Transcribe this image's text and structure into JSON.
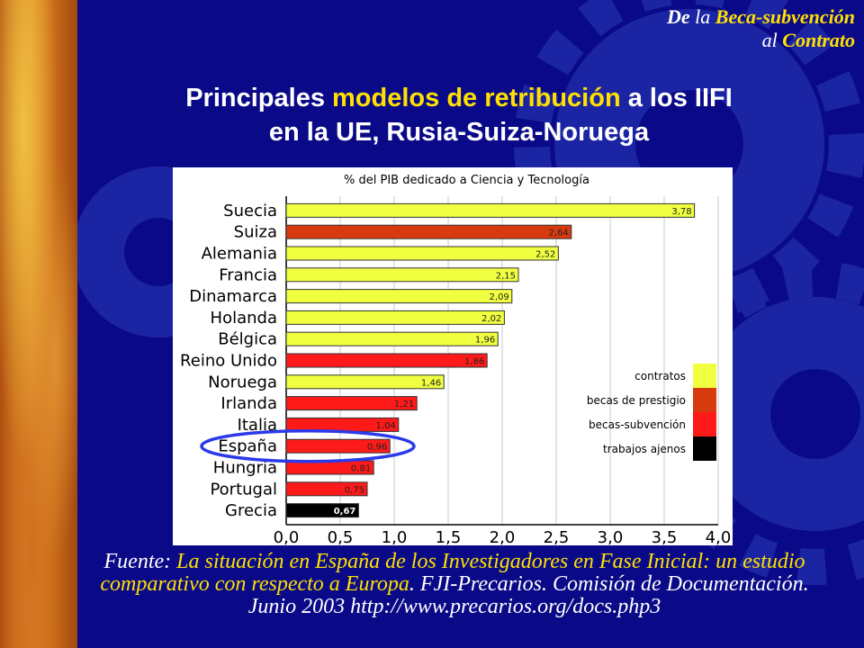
{
  "header": {
    "line1_a": "De ",
    "line1_b": "la ",
    "line1_c": "Beca-subvención",
    "line2_a": "al ",
    "line2_b": "Contrato"
  },
  "title": {
    "part1": "Principales ",
    "highlight": "modelos de retribución",
    "part2": " a los IIFI",
    "line2": "en la UE, Rusia-Suiza-Noruega"
  },
  "colors": {
    "background": "#0a0a88",
    "accent_yellow": "#ffe000",
    "contratos": "#f0ff40",
    "becas_de_prestigio": "#d83a10",
    "becas_subvencion": "#ff1a1a",
    "trabajos_ajenos": "#000000",
    "highlight_ellipse": "#2a3ae8"
  },
  "chart_data": {
    "type": "bar",
    "orientation": "horizontal",
    "title": "% del PIB dedicado a Ciencia y Tecnología",
    "categories": [
      "Suecia",
      "Suiza",
      "Alemania",
      "Francia",
      "Dinamarca",
      "Holanda",
      "Bélgica",
      "Reino Unido",
      "Noruega",
      "Irlanda",
      "Italia",
      "España",
      "Hungria",
      "Portugal",
      "Grecia"
    ],
    "values": [
      3.78,
      2.64,
      2.52,
      2.15,
      2.09,
      2.02,
      1.96,
      1.86,
      1.46,
      1.21,
      1.04,
      0.96,
      0.81,
      0.75,
      0.67
    ],
    "value_labels": [
      "3,78",
      "2,64",
      "2,52",
      "2,15",
      "2,09",
      "2,02",
      "1,96",
      "1,86",
      "1,46",
      "1,21",
      "1,04",
      "0,96",
      "0,81",
      "0,75",
      "0,67"
    ],
    "bar_types": [
      "contratos",
      "becas_de_prestigio",
      "contratos",
      "contratos",
      "contratos",
      "contratos",
      "contratos",
      "becas_subvencion",
      "contratos",
      "becas_subvencion",
      "becas_subvencion",
      "becas_subvencion",
      "becas_subvencion",
      "becas_subvencion",
      "trabajos_ajenos"
    ],
    "xlim": [
      0,
      4.0
    ],
    "xticks": [
      0,
      0.5,
      1.0,
      1.5,
      2.0,
      2.5,
      3.0,
      3.5,
      4.0
    ],
    "xtick_labels": [
      "0,0",
      "0,5",
      "1,0",
      "1,5",
      "2,0",
      "2,5",
      "3,0",
      "3,5",
      "4,0"
    ],
    "grid": "vertical",
    "legend": {
      "placement": "bottom-right",
      "entries": [
        {
          "key": "contratos",
          "label": "contratos"
        },
        {
          "key": "becas_de_prestigio",
          "label": "becas de prestigio"
        },
        {
          "key": "becas_subvencion",
          "label": "becas-subvención"
        },
        {
          "key": "trabajos_ajenos",
          "label": "trabajos ajenos"
        }
      ]
    },
    "highlighted_category": "España"
  },
  "source": {
    "prefix": "Fuente: ",
    "study": "La situación en España de los Investigadores en Fase Inicial: un estudio comparativo con respecto a Europa",
    "rest": ". FJI-Precarios. Comisión de Documentación. Junio 2003 http://www.precarios.org/docs.php3"
  }
}
